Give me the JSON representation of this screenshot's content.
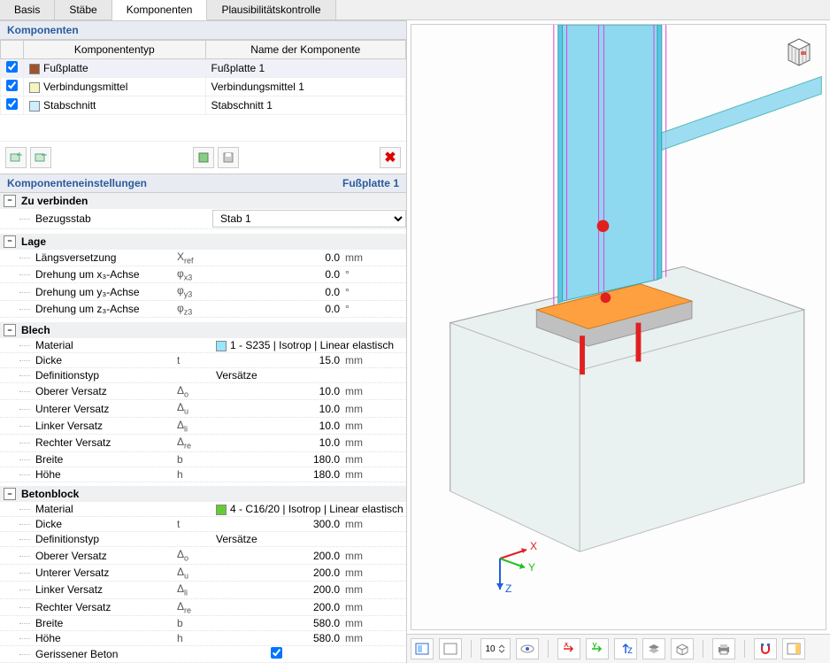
{
  "tabs": [
    "Basis",
    "Stäbe",
    "Komponenten",
    "Plausibilitätskontrolle"
  ],
  "active_tab": 2,
  "components_section": {
    "title": "Komponenten",
    "headers": {
      "type": "Komponententyp",
      "name": "Name der Komponente"
    },
    "rows": [
      {
        "checked": true,
        "color": "#a0522d",
        "type": "Fußplatte",
        "name": "Fußplatte 1",
        "selected": true
      },
      {
        "checked": true,
        "color": "#f5f5c0",
        "type": "Verbindungsmittel",
        "name": "Verbindungsmittel 1",
        "selected": false
      },
      {
        "checked": true,
        "color": "#cceeff",
        "type": "Stabschnitt",
        "name": "Stabschnitt 1",
        "selected": false
      }
    ]
  },
  "settings_section": {
    "title": "Komponenteneinstellungen",
    "subtitle": "Fußplatte 1"
  },
  "groups": {
    "zu_verbinden": {
      "title": "Zu verbinden",
      "bezugsstab_label": "Bezugsstab",
      "bezugsstab_value": "Stab 1"
    },
    "lage": {
      "title": "Lage",
      "rows": [
        {
          "label": "Längsversetzung",
          "symbol": "X",
          "sub": "ref",
          "value": "0.0",
          "unit": "mm"
        },
        {
          "label": "Drehung um x₃-Achse",
          "symbol": "φ",
          "sub": "x3",
          "value": "0.0",
          "unit": "°"
        },
        {
          "label": "Drehung um y₃-Achse",
          "symbol": "φ",
          "sub": "y3",
          "value": "0.0",
          "unit": "°"
        },
        {
          "label": "Drehung um z₃-Achse",
          "symbol": "φ",
          "sub": "z3",
          "value": "0.0",
          "unit": "°"
        }
      ]
    },
    "blech": {
      "title": "Blech",
      "material_label": "Material",
      "material_color": "#99e6ff",
      "material_value": "1 - S235 | Isotrop | Linear elastisch",
      "dicke": {
        "label": "Dicke",
        "symbol": "t",
        "value": "15.0",
        "unit": "mm"
      },
      "definitionstyp": {
        "label": "Definitionstyp",
        "value": "Versätze"
      },
      "offsets": [
        {
          "label": "Oberer Versatz",
          "symbol": "Δ",
          "sub": "o",
          "value": "10.0",
          "unit": "mm"
        },
        {
          "label": "Unterer Versatz",
          "symbol": "Δ",
          "sub": "u",
          "value": "10.0",
          "unit": "mm"
        },
        {
          "label": "Linker Versatz",
          "symbol": "Δ",
          "sub": "li",
          "value": "10.0",
          "unit": "mm"
        },
        {
          "label": "Rechter Versatz",
          "symbol": "Δ",
          "sub": "re",
          "value": "10.0",
          "unit": "mm"
        }
      ],
      "breite": {
        "label": "Breite",
        "symbol": "b",
        "value": "180.0",
        "unit": "mm"
      },
      "hoehe": {
        "label": "Höhe",
        "symbol": "h",
        "value": "180.0",
        "unit": "mm"
      }
    },
    "betonblock": {
      "title": "Betonblock",
      "material_label": "Material",
      "material_color": "#66cc33",
      "material_value": "4 - C16/20 | Isotrop | Linear elastisch",
      "dicke": {
        "label": "Dicke",
        "symbol": "t",
        "value": "300.0",
        "unit": "mm"
      },
      "definitionstyp": {
        "label": "Definitionstyp",
        "value": "Versätze"
      },
      "offsets": [
        {
          "label": "Oberer Versatz",
          "symbol": "Δ",
          "sub": "o",
          "value": "200.0",
          "unit": "mm"
        },
        {
          "label": "Unterer Versatz",
          "symbol": "Δ",
          "sub": "u",
          "value": "200.0",
          "unit": "mm"
        },
        {
          "label": "Linker Versatz",
          "symbol": "Δ",
          "sub": "li",
          "value": "200.0",
          "unit": "mm"
        },
        {
          "label": "Rechter Versatz",
          "symbol": "Δ",
          "sub": "re",
          "value": "200.0",
          "unit": "mm"
        }
      ],
      "breite": {
        "label": "Breite",
        "symbol": "b",
        "value": "580.0",
        "unit": "mm"
      },
      "hoehe": {
        "label": "Höhe",
        "symbol": "h",
        "value": "580.0",
        "unit": "mm"
      },
      "gerissener": {
        "label": "Gerissener Beton",
        "checked": true
      }
    }
  },
  "viewport": {
    "column_color": "#5dc5e6",
    "column_color_light": "#8ed8f0",
    "magenta": "#e040e0",
    "plate_top": "#ffa040",
    "plate_side": "#c0c0c0",
    "block_fill": "#dce8e8",
    "block_stroke": "#888",
    "bolt_color": "#e02020",
    "node_color": "#e02020",
    "brace_color": "#8ed8f0",
    "axes": {
      "x": "#e02020",
      "y": "#20c020",
      "z": "#2060e0",
      "labels": {
        "x": "X",
        "y": "Y",
        "z": "Z"
      }
    }
  },
  "bottom_toolbar_count": "10"
}
